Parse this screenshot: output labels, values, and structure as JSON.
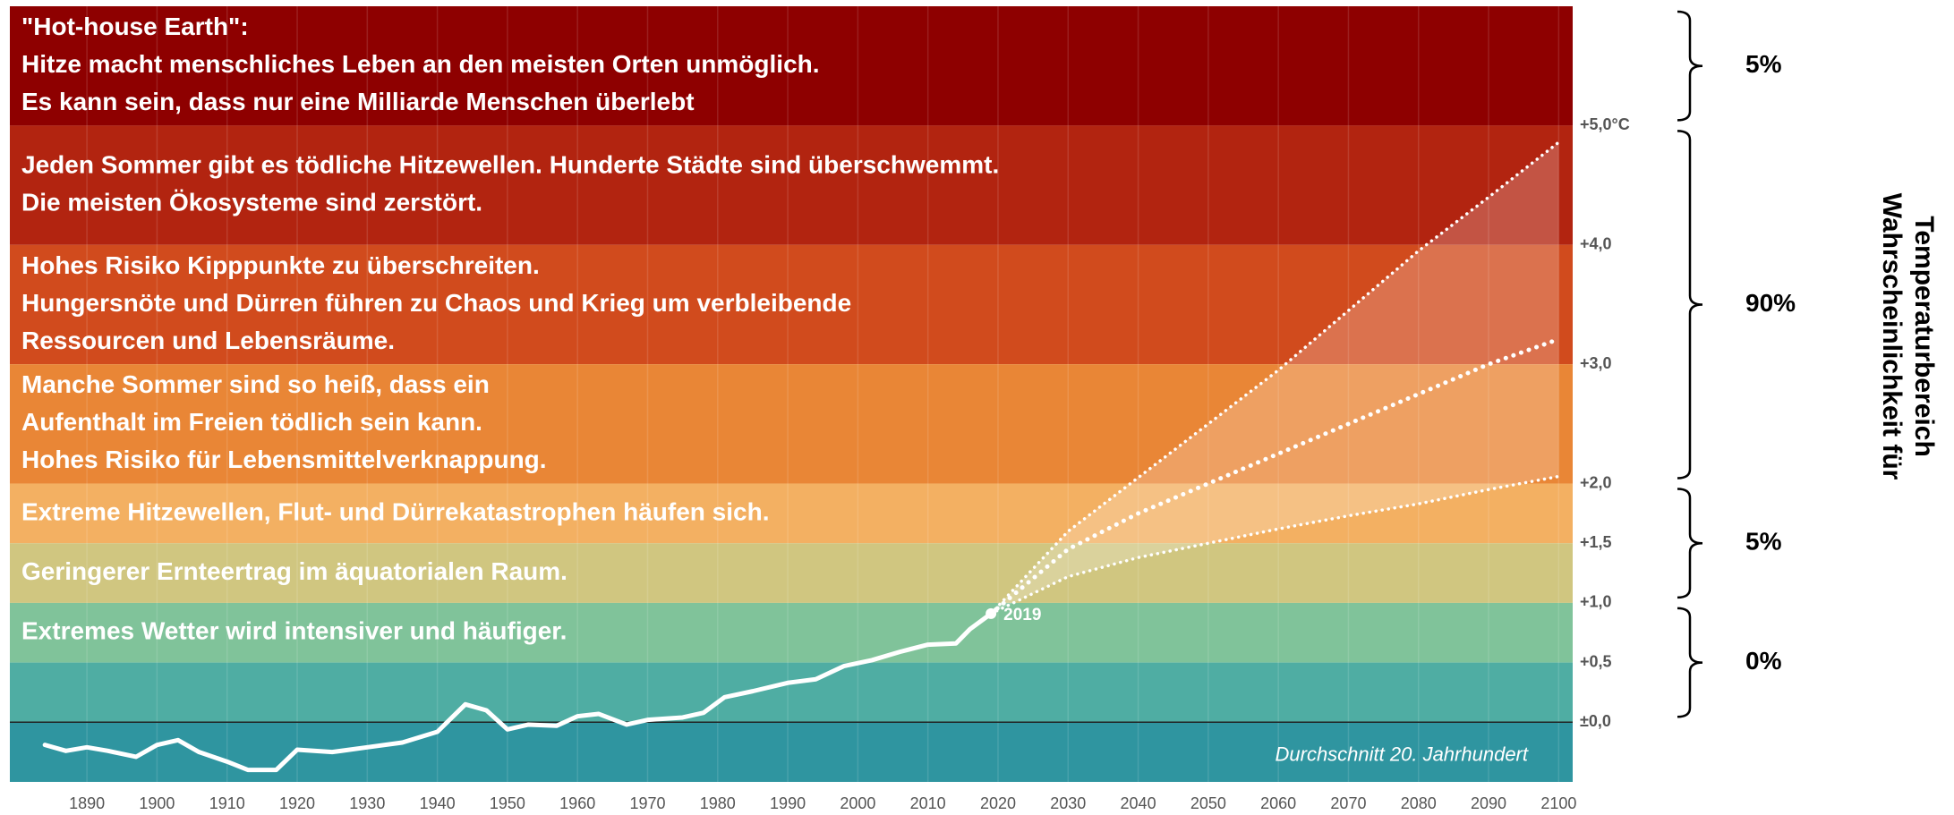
{
  "chart_data": {
    "type": "line",
    "xlim": [
      1879,
      2102
    ],
    "ylim": [
      -0.5,
      6
    ],
    "xticks": [
      1890,
      1900,
      1910,
      1920,
      1930,
      1940,
      1950,
      1960,
      1970,
      1980,
      1990,
      2000,
      2010,
      2020,
      2030,
      2040,
      2050,
      2060,
      2070,
      2080,
      2090,
      2100
    ],
    "yticks": [
      {
        "value": 5,
        "label": "+5,0°C"
      },
      {
        "value": 4,
        "label": "+4,0"
      },
      {
        "value": 3,
        "label": "+3,0"
      },
      {
        "value": 2,
        "label": "+2,0"
      },
      {
        "value": 1.5,
        "label": "+1,5"
      },
      {
        "value": 1,
        "label": "+1,0"
      },
      {
        "value": 0.5,
        "label": "+0,5"
      },
      {
        "value": 0,
        "label": "±0,0"
      }
    ],
    "grid": true,
    "bands": [
      {
        "range": [
          5,
          6
        ],
        "color": "#8e0000",
        "lines": [
          "\"Hot-house Earth\":",
          "Hitze macht menschliches Leben an den meisten Orten unmöglich.",
          "Es kann sein, dass nur eine Milliarde Menschen überlebt"
        ]
      },
      {
        "range": [
          4,
          5
        ],
        "color": "#b22410",
        "lines": [
          "Jeden Sommer gibt es tödliche Hitzewellen. Hunderte Städte sind überschwemmt.",
          "Die meisten Ökosysteme sind zerstört."
        ]
      },
      {
        "range": [
          3,
          4
        ],
        "color": "#d14b1d",
        "lines": [
          "Hohes Risiko Kipppunkte zu überschreiten.",
          "Hungersnöte und Dürren führen zu Chaos und Krieg um verbleibende",
          "Ressourcen und Lebensräume."
        ]
      },
      {
        "range": [
          2,
          3
        ],
        "color": "#e98636",
        "lines": [
          "Manche Sommer sind so heiß, dass ein",
          "Aufenthalt im Freien tödlich sein kann.",
          "Hohes Risiko für Lebensmittelverknappung."
        ]
      },
      {
        "range": [
          1.5,
          2
        ],
        "color": "#f3b062",
        "lines": [
          "Extreme Hitzewellen, Flut- und Dürrekatastrophen häufen sich."
        ]
      },
      {
        "range": [
          1,
          1.5
        ],
        "color": "#d0c680",
        "lines": [
          "Geringerer Ernteertrag im äquatorialen Raum."
        ]
      },
      {
        "range": [
          0.5,
          1
        ],
        "color": "#80c39a",
        "lines": [
          "Extremes Wetter wird intensiver und häufiger."
        ]
      },
      {
        "range": [
          0,
          0.5
        ],
        "color": "#4fada3",
        "lines": []
      },
      {
        "range": [
          -0.5,
          0
        ],
        "color": "#2f95a0",
        "lines": []
      }
    ],
    "series": [
      {
        "color": "#ffffff",
        "style": "solid",
        "x": [
          1884,
          1887,
          1890,
          1893,
          1897,
          1900,
          1903,
          1906,
          1910,
          1913,
          1917,
          1920,
          1925,
          1930,
          1935,
          1940,
          1944,
          1947,
          1950,
          1953,
          1957,
          1960,
          1963,
          1967,
          1970,
          1975,
          1978,
          1981,
          1985,
          1990,
          1994,
          1998,
          2002,
          2006,
          2010,
          2014,
          2016,
          2019
        ],
        "values": [
          -0.19,
          -0.24,
          -0.21,
          -0.24,
          -0.29,
          -0.19,
          -0.15,
          -0.25,
          -0.33,
          -0.4,
          -0.4,
          -0.23,
          -0.25,
          -0.21,
          -0.17,
          -0.08,
          0.15,
          0.1,
          -0.06,
          -0.02,
          -0.03,
          0.05,
          0.07,
          -0.02,
          0.02,
          0.04,
          0.08,
          0.21,
          0.26,
          0.33,
          0.36,
          0.47,
          0.52,
          0.59,
          0.65,
          0.66,
          0.78,
          0.91
        ]
      },
      {
        "color": "#ffffff",
        "style": "dotted",
        "x": [
          2019,
          2030,
          2040,
          2050,
          2060,
          2070,
          2080,
          2090,
          2100
        ],
        "values": [
          0.91,
          1.6,
          2.05,
          2.5,
          2.95,
          3.45,
          3.95,
          4.4,
          4.86
        ]
      },
      {
        "color": "#ffffff",
        "style": "dotted",
        "x": [
          2019,
          2030,
          2040,
          2050,
          2060,
          2070,
          2080,
          2090,
          2100
        ],
        "values": [
          0.91,
          1.45,
          1.75,
          2.0,
          2.25,
          2.5,
          2.75,
          3.0,
          3.21
        ]
      },
      {
        "color": "#ffffff",
        "style": "dotted",
        "x": [
          2019,
          2030,
          2040,
          2050,
          2060,
          2070,
          2080,
          2090,
          2100
        ],
        "values": [
          0.91,
          1.22,
          1.38,
          1.5,
          1.62,
          1.73,
          1.83,
          1.95,
          2.06
        ]
      }
    ],
    "point_label": "2019",
    "baseline_label": "Durchschnitt 20. Jahrhundert",
    "probabilities": [
      {
        "label": "5%",
        "range": [
          5,
          6
        ]
      },
      {
        "label": "90%",
        "range": [
          2,
          5
        ]
      },
      {
        "label": "5%",
        "range": [
          1,
          2
        ]
      },
      {
        "label": "0%",
        "range": [
          0,
          1
        ]
      }
    ],
    "side_title": [
      "Wahrscheinlichkeit für",
      "Temperaturbereich"
    ]
  }
}
